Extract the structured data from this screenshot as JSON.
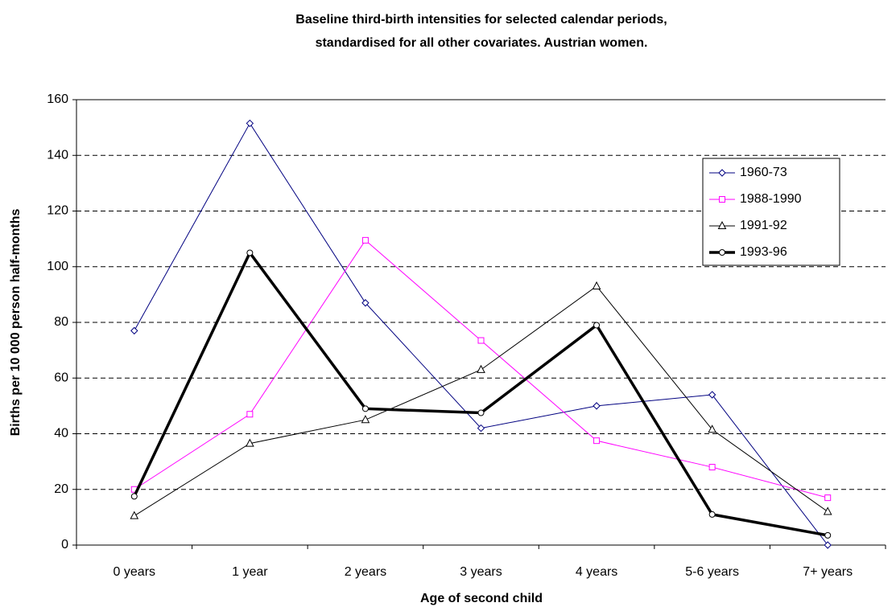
{
  "chart_data": {
    "type": "line",
    "title": [
      "Baseline third-birth intensities for selected calendar periods,",
      "standardised for all other covariates. Austrian women."
    ],
    "x_label": "Age of second child",
    "y_label": "Births per 10 000 person half-months",
    "categories": [
      "0 years",
      "1 year",
      "2 years",
      "3 years",
      "4 years",
      "5-6 years",
      "7+ years"
    ],
    "series": [
      {
        "name": "1960-73",
        "color": "#000080",
        "marker": "diamond",
        "line_width": 1,
        "values": [
          77,
          151.5,
          87,
          42,
          50,
          54,
          0
        ]
      },
      {
        "name": "1988-1990",
        "color": "#ff00ff",
        "marker": "square",
        "line_width": 1,
        "values": [
          20,
          47,
          109.5,
          73.5,
          37.5,
          28,
          17
        ]
      },
      {
        "name": "1991-92",
        "color": "#000000",
        "marker": "triangle",
        "line_width": 1,
        "values": [
          10.5,
          36.5,
          45,
          63,
          93,
          41.5,
          12
        ]
      },
      {
        "name": "1993-96",
        "color": "#000000",
        "marker": "circle",
        "line_width": 3.5,
        "values": [
          17.5,
          105,
          49,
          47.5,
          79,
          11,
          3.5
        ]
      }
    ],
    "ylim": [
      0,
      160
    ],
    "yticks": [
      0,
      20,
      40,
      60,
      80,
      100,
      120,
      140,
      160
    ],
    "grid": true,
    "legend": "right"
  }
}
